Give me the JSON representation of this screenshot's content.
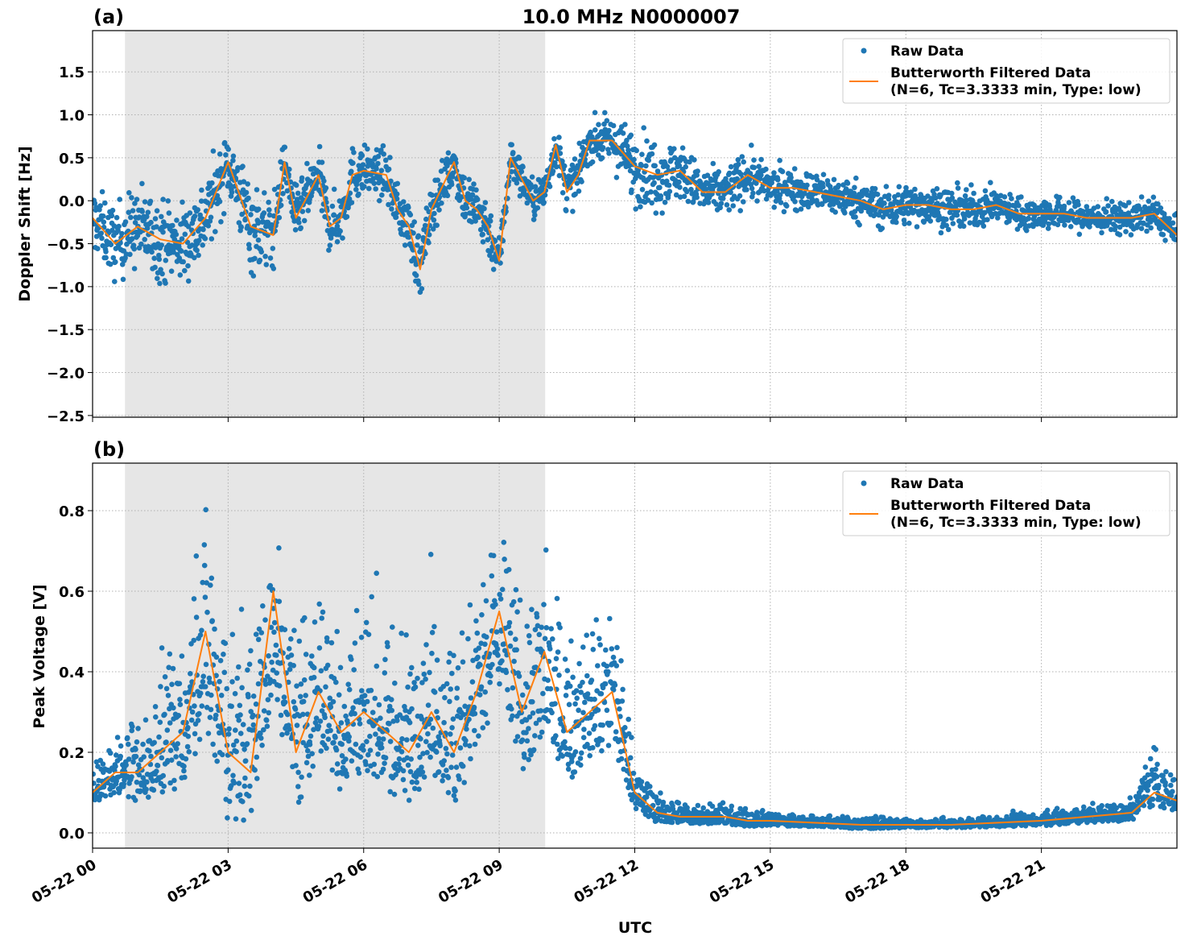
{
  "chart_data": [
    {
      "type": "scatter+line",
      "panel_label": "(a)",
      "title": "10.0 MHz N0000007",
      "xlabel": "",
      "ylabel": "Doppler Shift [Hz]",
      "xlim": [
        "05-22 00:00",
        "05-22 24:00"
      ],
      "ylim": [
        -2.52,
        1.98
      ],
      "yticks": [
        -2.5,
        -2.0,
        -1.5,
        -1.0,
        -0.5,
        0.0,
        0.5,
        1.0,
        1.5
      ],
      "ytick_labels": [
        "−2.5",
        "−2.0",
        "−1.5",
        "−1.0",
        "−0.5",
        "0.0",
        "0.5",
        "1.0",
        "1.5"
      ],
      "xticks": [
        "00:00",
        "03:00",
        "06:00",
        "09:00",
        "12:00",
        "15:00",
        "18:00",
        "21:00"
      ],
      "grid": true,
      "legend_position": "top-right",
      "shaded_span": [
        "00:43",
        "10:01"
      ],
      "colors": {
        "raw": "#1f77b4",
        "filtered": "#ff7f0e",
        "shade": "#e6e6e6"
      },
      "series": [
        {
          "name": "Raw Data",
          "style": "points",
          "x": [
            "00:00",
            "00:30",
            "01:00",
            "01:30",
            "02:00",
            "02:30",
            "03:00",
            "03:30",
            "04:00",
            "04:15",
            "04:30",
            "05:00",
            "05:15",
            "05:30",
            "05:45",
            "06:00",
            "06:30",
            "06:45",
            "07:00",
            "07:15",
            "07:30",
            "08:00",
            "08:15",
            "08:30",
            "08:45",
            "09:00",
            "09:15",
            "09:45",
            "10:00",
            "10:15",
            "10:30",
            "10:45",
            "11:00",
            "11:30",
            "12:00",
            "12:30",
            "13:00",
            "13:30",
            "14:00",
            "14:30",
            "15:00",
            "15:30",
            "16:00",
            "16:30",
            "17:00",
            "17:30",
            "18:00",
            "18:30",
            "19:00",
            "19:30",
            "20:00",
            "20:30",
            "21:00",
            "21:30",
            "22:00",
            "22:30",
            "23:00",
            "23:30",
            "24:00"
          ],
          "center": [
            -0.2,
            -0.5,
            -0.3,
            -0.45,
            -0.5,
            -0.2,
            0.45,
            -0.3,
            -0.4,
            0.45,
            -0.2,
            0.3,
            -0.3,
            -0.2,
            0.3,
            0.35,
            0.3,
            -0.1,
            -0.3,
            -0.8,
            -0.1,
            0.45,
            0.0,
            -0.1,
            -0.3,
            -0.7,
            0.5,
            0.0,
            0.1,
            0.65,
            0.1,
            0.3,
            0.7,
            0.7,
            0.4,
            0.3,
            0.35,
            0.1,
            0.1,
            0.3,
            0.15,
            0.15,
            0.1,
            0.05,
            0.0,
            -0.1,
            -0.05,
            -0.05,
            -0.1,
            -0.1,
            -0.05,
            -0.15,
            -0.15,
            -0.15,
            -0.2,
            -0.2,
            -0.2,
            -0.15,
            -0.4
          ],
          "spread": [
            0.4,
            0.45,
            0.5,
            0.5,
            0.5,
            0.5,
            0.4,
            0.6,
            0.45,
            0.3,
            0.35,
            0.35,
            0.35,
            0.35,
            0.35,
            0.3,
            0.3,
            0.3,
            0.35,
            0.4,
            0.3,
            0.3,
            0.35,
            0.4,
            0.35,
            0.3,
            0.25,
            0.25,
            0.25,
            0.25,
            0.3,
            0.25,
            0.25,
            0.3,
            0.45,
            0.45,
            0.35,
            0.3,
            0.3,
            0.3,
            0.25,
            0.25,
            0.25,
            0.25,
            0.25,
            0.25,
            0.25,
            0.25,
            0.25,
            0.25,
            0.2,
            0.2,
            0.2,
            0.2,
            0.2,
            0.2,
            0.2,
            0.2,
            0.2
          ]
        },
        {
          "name": "Butterworth Filtered Data\n(N=6, Tc=3.3333 min, Type: low)",
          "style": "line",
          "x": [
            "00:00",
            "00:30",
            "01:00",
            "01:30",
            "02:00",
            "02:30",
            "03:00",
            "03:30",
            "04:00",
            "04:15",
            "04:30",
            "05:00",
            "05:15",
            "05:30",
            "05:45",
            "06:00",
            "06:30",
            "06:45",
            "07:00",
            "07:15",
            "07:30",
            "08:00",
            "08:15",
            "08:30",
            "08:45",
            "09:00",
            "09:15",
            "09:45",
            "10:00",
            "10:15",
            "10:30",
            "10:45",
            "11:00",
            "11:30",
            "12:00",
            "12:30",
            "13:00",
            "13:30",
            "14:00",
            "14:30",
            "15:00",
            "15:30",
            "16:00",
            "16:30",
            "17:00",
            "17:30",
            "18:00",
            "18:30",
            "19:00",
            "19:30",
            "20:00",
            "20:30",
            "21:00",
            "21:30",
            "22:00",
            "22:30",
            "23:00",
            "23:30",
            "24:00"
          ],
          "y": [
            -0.2,
            -0.5,
            -0.3,
            -0.45,
            -0.5,
            -0.2,
            0.45,
            -0.3,
            -0.4,
            0.45,
            -0.2,
            0.3,
            -0.3,
            -0.2,
            0.3,
            0.35,
            0.3,
            -0.1,
            -0.3,
            -0.8,
            -0.1,
            0.45,
            0.0,
            -0.1,
            -0.3,
            -0.7,
            0.5,
            0.0,
            0.1,
            0.65,
            0.1,
            0.3,
            0.7,
            0.7,
            0.4,
            0.3,
            0.35,
            0.1,
            0.1,
            0.3,
            0.15,
            0.15,
            0.1,
            0.05,
            0.0,
            -0.1,
            -0.05,
            -0.05,
            -0.1,
            -0.1,
            -0.05,
            -0.15,
            -0.15,
            -0.15,
            -0.2,
            -0.2,
            -0.2,
            -0.15,
            -0.4
          ]
        }
      ]
    },
    {
      "type": "scatter+line",
      "panel_label": "(b)",
      "xlabel": "UTC",
      "ylabel": "Peak Voltage [V]",
      "xlim": [
        "05-22 00:00",
        "05-22 24:00"
      ],
      "ylim": [
        -0.038,
        0.918
      ],
      "yticks": [
        0.0,
        0.2,
        0.4,
        0.6,
        0.8
      ],
      "ytick_labels": [
        "0.0",
        "0.2",
        "0.4",
        "0.6",
        "0.8"
      ],
      "xticks": [
        "00:00",
        "03:00",
        "06:00",
        "09:00",
        "12:00",
        "15:00",
        "18:00",
        "21:00"
      ],
      "xtick_labels": [
        "05-22 00",
        "05-22 03",
        "05-22 06",
        "05-22 09",
        "05-22 12",
        "05-22 15",
        "05-22 18",
        "05-22 21"
      ],
      "grid": true,
      "legend_position": "top-right",
      "shaded_span": [
        "00:43",
        "10:01"
      ],
      "colors": {
        "raw": "#1f77b4",
        "filtered": "#ff7f0e",
        "shade": "#e6e6e6"
      },
      "series": [
        {
          "name": "Raw Data",
          "style": "points",
          "x": [
            "00:00",
            "00:30",
            "01:00",
            "01:30",
            "02:00",
            "02:30",
            "03:00",
            "03:30",
            "04:00",
            "04:30",
            "05:00",
            "05:30",
            "06:00",
            "06:30",
            "07:00",
            "07:30",
            "08:00",
            "08:30",
            "09:00",
            "09:30",
            "10:00",
            "10:30",
            "11:00",
            "11:30",
            "12:00",
            "12:30",
            "13:00",
            "13:30",
            "14:00",
            "14:30",
            "15:00",
            "16:00",
            "17:00",
            "18:00",
            "19:00",
            "20:00",
            "21:00",
            "22:00",
            "23:00",
            "23:30",
            "24:00"
          ],
          "center": [
            0.1,
            0.15,
            0.15,
            0.2,
            0.25,
            0.45,
            0.2,
            0.2,
            0.5,
            0.2,
            0.35,
            0.25,
            0.3,
            0.25,
            0.2,
            0.3,
            0.2,
            0.35,
            0.5,
            0.3,
            0.4,
            0.25,
            0.3,
            0.35,
            0.1,
            0.05,
            0.04,
            0.04,
            0.04,
            0.03,
            0.03,
            0.025,
            0.02,
            0.02,
            0.02,
            0.025,
            0.03,
            0.04,
            0.05,
            0.12,
            0.08
          ],
          "spread": [
            0.06,
            0.1,
            0.15,
            0.2,
            0.3,
            0.35,
            0.35,
            0.35,
            0.3,
            0.3,
            0.3,
            0.3,
            0.3,
            0.3,
            0.3,
            0.3,
            0.3,
            0.3,
            0.3,
            0.3,
            0.3,
            0.25,
            0.25,
            0.25,
            0.08,
            0.05,
            0.04,
            0.035,
            0.035,
            0.03,
            0.025,
            0.02,
            0.02,
            0.015,
            0.015,
            0.02,
            0.025,
            0.03,
            0.04,
            0.1,
            0.06
          ]
        },
        {
          "name": "Butterworth Filtered Data\n(N=6, Tc=3.3333 min, Type: low)",
          "style": "line",
          "x": [
            "00:00",
            "00:30",
            "01:00",
            "01:30",
            "02:00",
            "02:30",
            "03:00",
            "03:30",
            "04:00",
            "04:30",
            "05:00",
            "05:30",
            "06:00",
            "06:30",
            "07:00",
            "07:30",
            "08:00",
            "08:30",
            "09:00",
            "09:30",
            "10:00",
            "10:30",
            "11:00",
            "11:30",
            "12:00",
            "12:30",
            "13:00",
            "13:30",
            "14:00",
            "14:30",
            "15:00",
            "16:00",
            "17:00",
            "18:00",
            "19:00",
            "20:00",
            "21:00",
            "22:00",
            "23:00",
            "23:30",
            "24:00"
          ],
          "y": [
            0.1,
            0.15,
            0.15,
            0.2,
            0.25,
            0.5,
            0.2,
            0.15,
            0.6,
            0.2,
            0.35,
            0.25,
            0.3,
            0.25,
            0.2,
            0.3,
            0.2,
            0.35,
            0.55,
            0.3,
            0.45,
            0.25,
            0.3,
            0.35,
            0.1,
            0.05,
            0.04,
            0.04,
            0.04,
            0.03,
            0.03,
            0.025,
            0.02,
            0.02,
            0.02,
            0.025,
            0.03,
            0.04,
            0.05,
            0.1,
            0.08
          ]
        }
      ]
    }
  ],
  "legend": {
    "raw_label": "Raw Data",
    "filtered_label_line1": "Butterworth Filtered Data",
    "filtered_label_line2": "(N=6, Tc=3.3333 min, Type: low)"
  }
}
